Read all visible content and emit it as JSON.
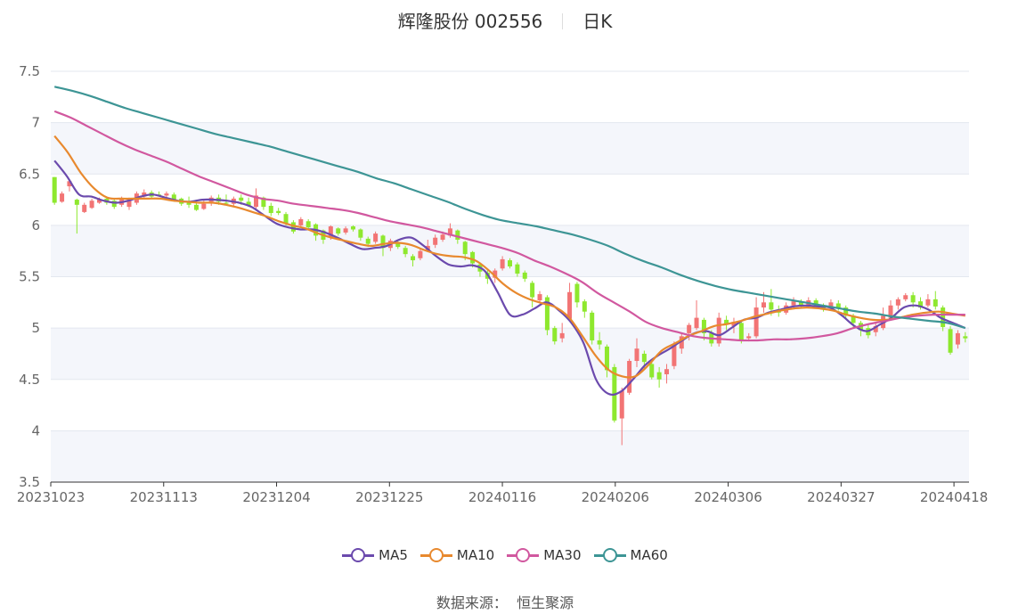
{
  "header": {
    "title": "辉隆股份 002556",
    "period": "日K"
  },
  "source": {
    "label": "数据来源：",
    "value": "恒生聚源"
  },
  "chart_data": {
    "type": "candlestick",
    "ylim": [
      3.5,
      7.5
    ],
    "yticks": [
      "3.5",
      "4",
      "4.5",
      "5",
      "5.5",
      "6",
      "6.5",
      "7",
      "7.5"
    ],
    "ytick_values": [
      3.5,
      4,
      4.5,
      5,
      5.5,
      6,
      6.5,
      7,
      7.5
    ],
    "xticks": [
      {
        "label": "20231023",
        "index": 0
      },
      {
        "label": "20231113",
        "index": 15
      },
      {
        "label": "20231204",
        "index": 30
      },
      {
        "label": "20231225",
        "index": 45
      },
      {
        "label": "20240116",
        "index": 60
      },
      {
        "label": "20240206",
        "index": 75
      },
      {
        "label": "20240306",
        "index": 90
      },
      {
        "label": "20240327",
        "index": 105
      },
      {
        "label": "20240418",
        "index": 120
      }
    ],
    "colors": {
      "up": "#f27474",
      "down": "#8ee82e"
    },
    "candles_ohlc": [
      [
        6.47,
        6.22,
        6.47,
        6.2
      ],
      [
        6.23,
        6.31,
        6.33,
        6.22
      ],
      [
        6.38,
        6.43,
        6.44,
        6.33
      ],
      [
        6.25,
        6.2,
        6.26,
        5.92
      ],
      [
        6.13,
        6.2,
        6.22,
        6.12
      ],
      [
        6.17,
        6.24,
        6.26,
        6.16
      ],
      [
        6.22,
        6.25,
        6.27,
        6.21
      ],
      [
        6.26,
        6.22,
        6.28,
        6.2
      ],
      [
        6.24,
        6.18,
        6.26,
        6.16
      ],
      [
        6.2,
        6.26,
        6.28,
        6.18
      ],
      [
        6.18,
        6.25,
        6.27,
        6.15
      ],
      [
        6.22,
        6.31,
        6.33,
        6.2
      ],
      [
        6.28,
        6.32,
        6.35,
        6.26
      ],
      [
        6.32,
        6.28,
        6.34,
        6.26
      ],
      [
        6.3,
        6.29,
        6.33,
        6.28
      ],
      [
        6.29,
        6.31,
        6.33,
        6.26
      ],
      [
        6.3,
        6.25,
        6.32,
        6.23
      ],
      [
        6.26,
        6.21,
        6.27,
        6.19
      ],
      [
        6.22,
        6.2,
        6.28,
        6.17
      ],
      [
        6.2,
        6.15,
        6.25,
        6.14
      ],
      [
        6.16,
        6.21,
        6.24,
        6.15
      ],
      [
        6.23,
        6.27,
        6.29,
        6.19
      ],
      [
        6.27,
        6.23,
        6.3,
        6.2
      ],
      [
        6.22,
        6.21,
        6.3,
        6.2
      ],
      [
        6.21,
        6.26,
        6.28,
        6.19
      ],
      [
        6.27,
        6.24,
        6.3,
        6.2
      ],
      [
        6.23,
        6.19,
        6.27,
        6.18
      ],
      [
        6.18,
        6.29,
        6.36,
        6.16
      ],
      [
        6.27,
        6.18,
        6.28,
        6.15
      ],
      [
        6.19,
        6.12,
        6.22,
        6.09
      ],
      [
        6.14,
        6.12,
        6.17,
        6.1
      ],
      [
        6.11,
        6.02,
        6.13,
        6.0
      ],
      [
        6.03,
        5.94,
        6.05,
        5.92
      ],
      [
        6.0,
        6.06,
        6.08,
        5.98
      ],
      [
        6.04,
        5.98,
        6.06,
        5.95
      ],
      [
        6.01,
        5.9,
        6.02,
        5.85
      ],
      [
        5.95,
        5.86,
        5.96,
        5.82
      ],
      [
        5.88,
        5.99,
        6.0,
        5.86
      ],
      [
        5.97,
        5.92,
        5.98,
        5.9
      ],
      [
        5.93,
        5.97,
        5.99,
        5.91
      ],
      [
        5.99,
        5.96,
        6.0,
        5.94
      ],
      [
        5.96,
        5.88,
        5.97,
        5.85
      ],
      [
        5.87,
        5.82,
        5.89,
        5.79
      ],
      [
        5.84,
        5.92,
        5.94,
        5.82
      ],
      [
        5.9,
        5.78,
        5.91,
        5.7
      ],
      [
        5.78,
        5.85,
        5.87,
        5.75
      ],
      [
        5.83,
        5.79,
        5.85,
        5.77
      ],
      [
        5.78,
        5.72,
        5.8,
        5.69
      ],
      [
        5.7,
        5.66,
        5.72,
        5.6
      ],
      [
        5.68,
        5.75,
        5.77,
        5.66
      ],
      [
        5.76,
        5.8,
        5.86,
        5.74
      ],
      [
        5.81,
        5.88,
        5.91,
        5.78
      ],
      [
        5.86,
        5.91,
        5.94,
        5.84
      ],
      [
        5.9,
        5.97,
        6.02,
        5.88
      ],
      [
        5.95,
        5.86,
        5.96,
        5.82
      ],
      [
        5.84,
        5.72,
        5.85,
        5.66
      ],
      [
        5.74,
        5.63,
        5.75,
        5.59
      ],
      [
        5.62,
        5.55,
        5.64,
        5.5
      ],
      [
        5.54,
        5.48,
        5.56,
        5.43
      ],
      [
        5.49,
        5.56,
        5.58,
        5.44
      ],
      [
        5.58,
        5.67,
        5.7,
        5.56
      ],
      [
        5.66,
        5.6,
        5.68,
        5.58
      ],
      [
        5.62,
        5.53,
        5.64,
        5.5
      ],
      [
        5.54,
        5.48,
        5.56,
        5.45
      ],
      [
        5.44,
        5.3,
        5.46,
        5.2
      ],
      [
        5.27,
        5.33,
        5.36,
        5.24
      ],
      [
        5.3,
        4.98,
        5.32,
        4.93
      ],
      [
        5.0,
        4.87,
        5.02,
        4.84
      ],
      [
        4.9,
        4.95,
        5.05,
        4.86
      ],
      [
        5.09,
        5.35,
        5.44,
        5.07
      ],
      [
        5.43,
        5.25,
        5.45,
        5.2
      ],
      [
        5.26,
        5.16,
        5.28,
        5.1
      ],
      [
        5.15,
        4.88,
        5.17,
        4.84
      ],
      [
        4.88,
        4.84,
        4.96,
        4.79
      ],
      [
        4.82,
        4.59,
        4.84,
        4.52
      ],
      [
        4.62,
        4.1,
        4.65,
        4.08
      ],
      [
        4.12,
        4.39,
        4.42,
        3.86
      ],
      [
        4.37,
        4.68,
        4.7,
        4.35
      ],
      [
        4.68,
        4.8,
        4.9,
        4.62
      ],
      [
        4.75,
        4.67,
        4.78,
        4.6
      ],
      [
        4.65,
        4.52,
        4.68,
        4.5
      ],
      [
        4.57,
        4.5,
        4.62,
        4.42
      ],
      [
        4.55,
        4.6,
        4.65,
        4.46
      ],
      [
        4.63,
        4.84,
        4.87,
        4.6
      ],
      [
        4.8,
        4.92,
        4.95,
        4.75
      ],
      [
        4.95,
        5.03,
        5.05,
        4.88
      ],
      [
        5.0,
        5.1,
        5.27,
        4.98
      ],
      [
        5.08,
        4.95,
        5.1,
        4.88
      ],
      [
        4.95,
        4.85,
        4.98,
        4.82
      ],
      [
        4.85,
        5.1,
        5.15,
        4.82
      ],
      [
        5.08,
        5.04,
        5.12,
        4.98
      ],
      [
        5.02,
        5.06,
        5.1,
        4.95
      ],
      [
        5.05,
        4.88,
        5.08,
        4.85
      ],
      [
        4.9,
        4.92,
        4.95,
        4.87
      ],
      [
        4.92,
        5.2,
        5.3,
        4.9
      ],
      [
        5.2,
        5.25,
        5.35,
        5.15
      ],
      [
        5.25,
        5.18,
        5.38,
        5.12
      ],
      [
        5.18,
        5.15,
        5.22,
        5.11
      ],
      [
        5.15,
        5.22,
        5.25,
        5.13
      ],
      [
        5.22,
        5.26,
        5.3,
        5.18
      ],
      [
        5.26,
        5.21,
        5.28,
        5.19
      ],
      [
        5.22,
        5.27,
        5.3,
        5.2
      ],
      [
        5.27,
        5.22,
        5.29,
        5.2
      ],
      [
        5.22,
        5.18,
        5.24,
        5.16
      ],
      [
        5.19,
        5.25,
        5.28,
        5.17
      ],
      [
        5.24,
        5.2,
        5.27,
        5.17
      ],
      [
        5.2,
        5.12,
        5.22,
        5.09
      ],
      [
        5.12,
        5.05,
        5.14,
        5.0
      ],
      [
        5.05,
        4.98,
        5.07,
        4.92
      ],
      [
        5.0,
        4.93,
        5.03,
        4.9
      ],
      [
        4.96,
        5.02,
        5.06,
        4.92
      ],
      [
        5.0,
        5.12,
        5.2,
        4.98
      ],
      [
        5.1,
        5.22,
        5.27,
        5.08
      ],
      [
        5.22,
        5.28,
        5.3,
        5.18
      ],
      [
        5.28,
        5.32,
        5.34,
        5.26
      ],
      [
        5.32,
        5.25,
        5.35,
        5.2
      ],
      [
        5.26,
        5.2,
        5.3,
        5.18
      ],
      [
        5.22,
        5.28,
        5.33,
        5.2
      ],
      [
        5.28,
        5.21,
        5.36,
        5.18
      ],
      [
        5.2,
        5.01,
        5.22,
        4.97
      ],
      [
        4.99,
        4.76,
        5.02,
        4.74
      ],
      [
        4.84,
        4.95,
        4.98,
        4.8
      ],
      [
        4.92,
        4.9,
        4.96,
        4.86
      ]
    ],
    "series": [
      {
        "name": "MA5",
        "color": "#6b4aad",
        "values": [
          6.63,
          6.48,
          6.3,
          6.28,
          6.24,
          6.22,
          6.24,
          6.28,
          6.3,
          6.27,
          6.24,
          6.23,
          6.25,
          6.25,
          6.24,
          6.22,
          6.18,
          6.1,
          6.02,
          5.98,
          5.96,
          5.96,
          5.93,
          5.88,
          5.82,
          5.77,
          5.78,
          5.8,
          5.86,
          5.88,
          5.8,
          5.7,
          5.62,
          5.6,
          5.61,
          5.55,
          5.35,
          5.13,
          5.13,
          5.19,
          5.25,
          5.17,
          5.05,
          4.85,
          4.5,
          4.36,
          4.38,
          4.5,
          4.64,
          4.73,
          4.8,
          4.88,
          4.95,
          4.97,
          4.93,
          5.0,
          5.08,
          5.1,
          5.15,
          5.18,
          5.21,
          5.22,
          5.21,
          5.2,
          5.12,
          5.02,
          4.97,
          5.03,
          5.1,
          5.2,
          5.22,
          5.18,
          5.1,
          5.05,
          5.0
        ]
      },
      {
        "name": "MA10",
        "color": "#e8892e",
        "values": [
          6.87,
          6.71,
          6.51,
          6.36,
          6.27,
          6.26,
          6.26,
          6.26,
          6.26,
          6.24,
          6.23,
          6.22,
          6.22,
          6.2,
          6.17,
          6.13,
          6.09,
          6.04,
          6.0,
          5.97,
          5.92,
          5.88,
          5.85,
          5.82,
          5.8,
          5.82,
          5.83,
          5.81,
          5.76,
          5.72,
          5.7,
          5.69,
          5.65,
          5.55,
          5.43,
          5.34,
          5.28,
          5.24,
          5.2,
          5.1,
          4.92,
          4.73,
          4.59,
          4.53,
          4.53,
          4.64,
          4.78,
          4.85,
          4.92,
          4.97,
          5.02,
          5.04,
          5.07,
          5.11,
          5.14,
          5.17,
          5.19,
          5.2,
          5.19,
          5.17,
          5.13,
          5.1,
          5.08,
          5.08,
          5.1,
          5.13,
          5.15,
          5.16,
          5.14,
          5.12
        ]
      },
      {
        "name": "MA30",
        "color": "#d1589f",
        "values": [
          7.11,
          7.05,
          6.97,
          6.89,
          6.81,
          6.74,
          6.68,
          6.62,
          6.55,
          6.48,
          6.42,
          6.36,
          6.3,
          6.26,
          6.24,
          6.21,
          6.19,
          6.17,
          6.15,
          6.12,
          6.08,
          6.04,
          6.01,
          5.98,
          5.94,
          5.9,
          5.86,
          5.82,
          5.78,
          5.73,
          5.66,
          5.6,
          5.53,
          5.45,
          5.34,
          5.25,
          5.16,
          5.06,
          5.0,
          4.96,
          4.92,
          4.9,
          4.89,
          4.88,
          4.88,
          4.89,
          4.89,
          4.9,
          4.92,
          4.95,
          5.0,
          5.04,
          5.07,
          5.1,
          5.12,
          5.13,
          5.13,
          5.13
        ]
      },
      {
        "name": "MA60",
        "color": "#3d9595",
        "values": [
          7.35,
          7.31,
          7.26,
          7.2,
          7.14,
          7.09,
          7.04,
          6.99,
          6.94,
          6.89,
          6.85,
          6.81,
          6.77,
          6.72,
          6.67,
          6.62,
          6.57,
          6.52,
          6.46,
          6.41,
          6.35,
          6.29,
          6.23,
          6.16,
          6.1,
          6.05,
          6.02,
          5.99,
          5.95,
          5.91,
          5.86,
          5.8,
          5.72,
          5.65,
          5.59,
          5.52,
          5.46,
          5.41,
          5.37,
          5.34,
          5.31,
          5.28,
          5.25,
          5.22,
          5.19,
          5.16,
          5.14,
          5.11,
          5.09,
          5.07,
          5.05,
          5.0
        ]
      }
    ]
  }
}
